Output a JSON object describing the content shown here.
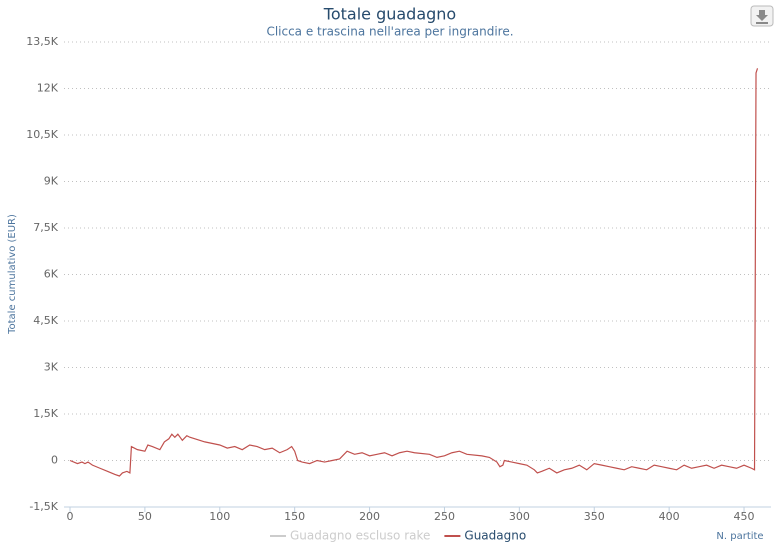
{
  "chart_data": {
    "type": "line",
    "title": "Totale guadagno",
    "subtitle": "Clicca e trascina nell'area per ingrandire.",
    "y_axis_label": "Totale cumulativo (EUR)",
    "x_axis_label": "N. partite",
    "x": [
      0,
      5,
      8,
      10,
      12,
      15,
      20,
      25,
      30,
      33,
      35,
      38,
      40,
      41,
      45,
      50,
      52,
      55,
      60,
      63,
      66,
      68,
      70,
      72,
      75,
      78,
      80,
      90,
      100,
      105,
      110,
      115,
      120,
      125,
      130,
      135,
      140,
      145,
      148,
      150,
      152,
      155,
      160,
      165,
      170,
      175,
      180,
      185,
      190,
      195,
      200,
      205,
      210,
      215,
      220,
      225,
      230,
      240,
      245,
      250,
      255,
      260,
      265,
      275,
      280,
      285,
      287,
      289,
      290,
      295,
      300,
      305,
      310,
      312,
      315,
      320,
      325,
      330,
      335,
      340,
      345,
      350,
      355,
      360,
      365,
      370,
      375,
      380,
      385,
      390,
      395,
      400,
      405,
      410,
      415,
      420,
      425,
      430,
      435,
      440,
      445,
      450,
      455,
      457,
      458,
      459
    ],
    "series": [
      {
        "name": "Guadagno escluso rake",
        "color": "#cccccc",
        "visible": false
      },
      {
        "name": "Guadagno",
        "color": "#c0504d",
        "values": [
          0,
          -100,
          -50,
          -100,
          -50,
          -150,
          -250,
          -350,
          -450,
          -500,
          -400,
          -350,
          -400,
          450,
          350,
          300,
          500,
          450,
          350,
          600,
          700,
          850,
          750,
          850,
          650,
          800,
          750,
          600,
          500,
          400,
          450,
          350,
          500,
          450,
          350,
          400,
          250,
          350,
          450,
          300,
          0,
          -50,
          -100,
          0,
          -50,
          0,
          50,
          300,
          200,
          250,
          150,
          200,
          250,
          150,
          250,
          300,
          250,
          200,
          100,
          150,
          250,
          300,
          200,
          150,
          100,
          -50,
          -200,
          -150,
          0,
          -50,
          -100,
          -150,
          -300,
          -400,
          -350,
          -250,
          -400,
          -300,
          -250,
          -150,
          -300,
          -100,
          -150,
          -200,
          -250,
          -300,
          -200,
          -250,
          -300,
          -150,
          -200,
          -250,
          -300,
          -150,
          -250,
          -200,
          -150,
          -250,
          -150,
          -200,
          -250,
          -150,
          -250,
          -300,
          12500,
          12650
        ]
      }
    ],
    "xlim": [
      -4,
      468
    ],
    "xticks": [
      0,
      50,
      100,
      150,
      200,
      250,
      300,
      350,
      400,
      450
    ],
    "ylim": [
      -1500,
      13500
    ],
    "yticks": [
      {
        "value": -1500,
        "label": "-1,5K"
      },
      0,
      {
        "value": 1500,
        "label": "1,5K"
      },
      {
        "value": 3000,
        "label": "3K"
      },
      {
        "value": 4500,
        "label": "4,5K"
      },
      {
        "value": 6000,
        "label": "6K"
      },
      {
        "value": 7500,
        "label": "7,5K"
      },
      {
        "value": 9000,
        "label": "9K"
      },
      {
        "value": 10500,
        "label": "10,5K"
      },
      {
        "value": 12000,
        "label": "12K"
      },
      {
        "value": 13500,
        "label": "13,5K"
      }
    ],
    "grid": true
  }
}
